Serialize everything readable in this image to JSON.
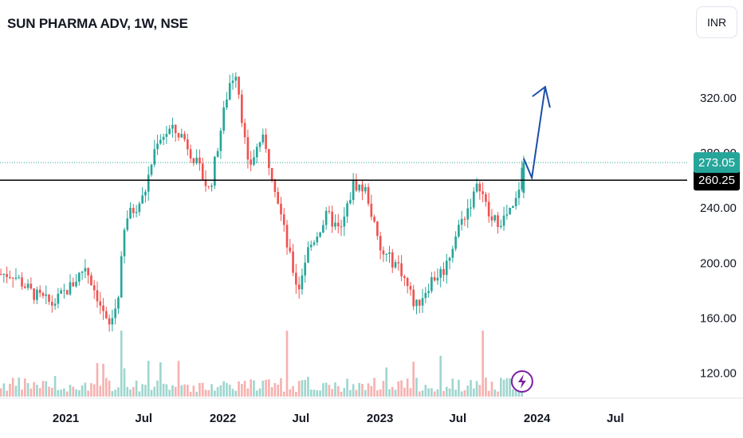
{
  "header": {
    "title": "SUN PHARMA ADV, 1W, NSE",
    "currency": "INR"
  },
  "colors": {
    "up": "#26a69a",
    "down": "#ef5350",
    "volume_up": "#9fd6cf",
    "volume_down": "#f6b2b0",
    "current_price_tag": "#26a69a",
    "level_tag": "#000000",
    "arrow": "#1c4fa8",
    "flash_icon": "#7b1fa2"
  },
  "chart_data": {
    "type": "candlestick",
    "symbol": "SUN PHARMA ADV",
    "interval": "1W",
    "exchange": "NSE",
    "currency": "INR",
    "y_ticks": [
      "320.00",
      "280.00",
      "240.00",
      "200.00",
      "160.00",
      "120.00"
    ],
    "ylim": [
      103,
      368
    ],
    "x_ticks": [
      "2021",
      "Jul",
      "2022",
      "Jul",
      "2023",
      "Jul",
      "2024",
      "Jul"
    ],
    "x_tick_dates": [
      "2021-01-01",
      "2021-07-01",
      "2022-01-01",
      "2022-07-01",
      "2023-01-01",
      "2023-07-01",
      "2024-01-01",
      "2024-07-01"
    ],
    "xlim": [
      "2020-08-01",
      "2024-12-15"
    ],
    "current_price": "273.05",
    "current_price_value": 273.05,
    "horizontal_level": "260.25",
    "horizontal_level_value": 260.25,
    "price_path": [
      {
        "date": "2020-09-01",
        "price": 192
      },
      {
        "date": "2020-10-15",
        "price": 178
      },
      {
        "date": "2020-12-01",
        "price": 170
      },
      {
        "date": "2021-01-15",
        "price": 184
      },
      {
        "date": "2021-02-15",
        "price": 198
      },
      {
        "date": "2021-03-15",
        "price": 176
      },
      {
        "date": "2021-04-10",
        "price": 152
      },
      {
        "date": "2021-05-01",
        "price": 172
      },
      {
        "date": "2021-05-20",
        "price": 232
      },
      {
        "date": "2021-07-01",
        "price": 248
      },
      {
        "date": "2021-08-01",
        "price": 290
      },
      {
        "date": "2021-09-01",
        "price": 297
      },
      {
        "date": "2021-10-01",
        "price": 292
      },
      {
        "date": "2021-11-01",
        "price": 272
      },
      {
        "date": "2021-12-01",
        "price": 252
      },
      {
        "date": "2022-01-15",
        "price": 330
      },
      {
        "date": "2022-02-01",
        "price": 340
      },
      {
        "date": "2022-03-01",
        "price": 268
      },
      {
        "date": "2022-04-01",
        "price": 292
      },
      {
        "date": "2022-05-01",
        "price": 258
      },
      {
        "date": "2022-06-01",
        "price": 210
      },
      {
        "date": "2022-06-25",
        "price": 180
      },
      {
        "date": "2022-07-15",
        "price": 208
      },
      {
        "date": "2022-09-01",
        "price": 235
      },
      {
        "date": "2022-10-01",
        "price": 222
      },
      {
        "date": "2022-11-01",
        "price": 258
      },
      {
        "date": "2022-12-01",
        "price": 252
      },
      {
        "date": "2023-01-01",
        "price": 208
      },
      {
        "date": "2023-02-15",
        "price": 198
      },
      {
        "date": "2023-03-25",
        "price": 168
      },
      {
        "date": "2023-05-01",
        "price": 188
      },
      {
        "date": "2023-06-01",
        "price": 196
      },
      {
        "date": "2023-07-01",
        "price": 225
      },
      {
        "date": "2023-08-01",
        "price": 245
      },
      {
        "date": "2023-08-20",
        "price": 258
      },
      {
        "date": "2023-09-15",
        "price": 230
      },
      {
        "date": "2023-10-15",
        "price": 232
      },
      {
        "date": "2023-11-10",
        "price": 240
      },
      {
        "date": "2023-12-01",
        "price": 273.05
      }
    ],
    "annotation_arrow": [
      {
        "date": "2023-12-01",
        "price": 276
      },
      {
        "date": "2023-12-20",
        "price": 262
      },
      {
        "date": "2024-01-20",
        "price": 328
      }
    ]
  }
}
